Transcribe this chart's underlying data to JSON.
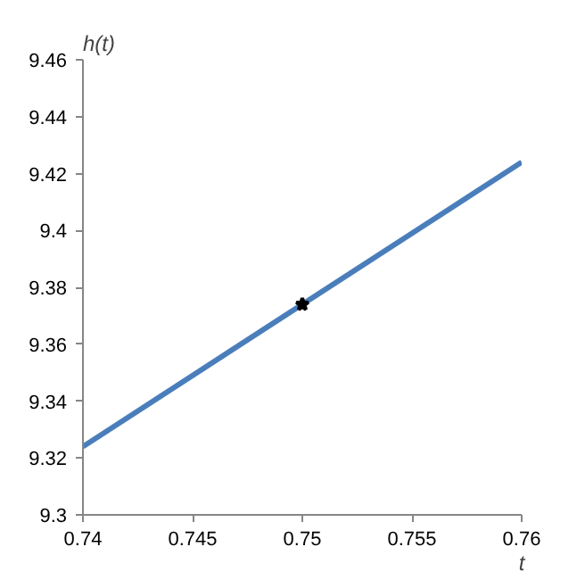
{
  "chart_data": {
    "type": "line",
    "xlabel": "t",
    "ylabel": "h(t)",
    "series": [
      {
        "color": "#4a7ebb",
        "x": [
          0.74,
          0.76
        ],
        "values": [
          9.324,
          9.424
        ]
      },
      {
        "type": "scatter",
        "color": "#000000",
        "x": [
          0.75
        ],
        "values": [
          9.374
        ],
        "marker": "star"
      }
    ],
    "xlim": [
      0.74,
      0.76
    ],
    "xticks": [
      0.74,
      0.745,
      0.75,
      0.755,
      0.76
    ],
    "ylim": [
      9.3,
      9.46
    ],
    "yticks": [
      9.3,
      9.32,
      9.34,
      9.36,
      9.38,
      9.4,
      9.42,
      9.44,
      9.46
    ],
    "grid": false
  }
}
